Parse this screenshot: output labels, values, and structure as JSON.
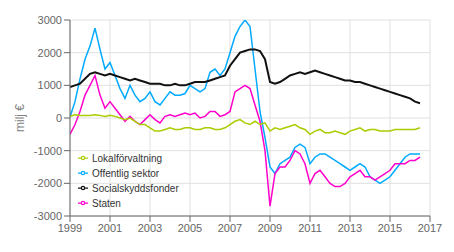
{
  "chart_data": {
    "type": "line",
    "title": "",
    "ylabel": "milj €",
    "x": [
      1999,
      1999.25,
      1999.5,
      1999.75,
      2000,
      2000.25,
      2000.5,
      2000.75,
      2001,
      2001.25,
      2001.5,
      2001.75,
      2002,
      2002.25,
      2002.5,
      2002.75,
      2003,
      2003.25,
      2003.5,
      2003.75,
      2004,
      2004.25,
      2004.5,
      2004.75,
      2005,
      2005.25,
      2005.5,
      2005.75,
      2006,
      2006.25,
      2006.5,
      2006.75,
      2007,
      2007.25,
      2007.5,
      2007.75,
      2008,
      2008.25,
      2008.5,
      2008.75,
      2009,
      2009.25,
      2009.5,
      2009.75,
      2010,
      2010.25,
      2010.5,
      2010.75,
      2011,
      2011.25,
      2011.5,
      2011.75,
      2012,
      2012.25,
      2012.5,
      2012.75,
      2013,
      2013.25,
      2013.5,
      2013.75,
      2014,
      2014.25,
      2014.5,
      2014.75,
      2015,
      2015.25,
      2015.5,
      2015.75,
      2016,
      2016.25,
      2016.5
    ],
    "series": [
      {
        "name": "Offentlig sektor",
        "color": "#00aaff",
        "values": [
          30,
          500,
          1200,
          1800,
          2200,
          2750,
          2100,
          1500,
          1700,
          1300,
          900,
          600,
          1000,
          700,
          500,
          600,
          800,
          500,
          400,
          600,
          800,
          700,
          700,
          750,
          1000,
          900,
          800,
          900,
          1400,
          1500,
          1300,
          1500,
          2000,
          2500,
          2800,
          3000,
          2800,
          1500,
          200,
          -600,
          -1500,
          -1700,
          -1400,
          -1300,
          -1200,
          -900,
          -800,
          -900,
          -1400,
          -1200,
          -1100,
          -1100,
          -1200,
          -1300,
          -1400,
          -1500,
          -1600,
          -1500,
          -1400,
          -1500,
          -1800,
          -1900,
          -2000,
          -1900,
          -1800,
          -1600,
          -1400,
          -1200,
          -1100,
          -1100,
          -1100
        ]
      },
      {
        "name": "Staten",
        "color": "#ff00cc",
        "values": [
          -500,
          -200,
          200,
          700,
          1000,
          1300,
          700,
          300,
          500,
          300,
          100,
          -100,
          50,
          -100,
          -200,
          -50,
          100,
          -50,
          -150,
          50,
          100,
          50,
          100,
          150,
          100,
          150,
          0,
          50,
          200,
          200,
          50,
          100,
          200,
          800,
          900,
          1000,
          900,
          400,
          -100,
          -1000,
          -2700,
          -1700,
          -1500,
          -1500,
          -1300,
          -1000,
          -1100,
          -1400,
          -2000,
          -1700,
          -1600,
          -1800,
          -2000,
          -2100,
          -2100,
          -2000,
          -1800,
          -1700,
          -1600,
          -1800,
          -1800,
          -1900,
          -1800,
          -1700,
          -1600,
          -1400,
          -1400,
          -1400,
          -1300,
          -1300,
          -1200
        ]
      },
      {
        "name": "Lokalförvaltning",
        "color": "#aacc00",
        "values": [
          50,
          100,
          80,
          80,
          80,
          100,
          80,
          50,
          80,
          50,
          0,
          -50,
          0,
          -100,
          -200,
          -200,
          -300,
          -400,
          -400,
          -350,
          -300,
          -350,
          -350,
          -300,
          -300,
          -350,
          -350,
          -300,
          -300,
          -350,
          -350,
          -300,
          -200,
          -100,
          -50,
          -150,
          -200,
          -100,
          -200,
          -150,
          -400,
          -300,
          -350,
          -300,
          -250,
          -200,
          -300,
          -350,
          -500,
          -400,
          -350,
          -450,
          -450,
          -400,
          -450,
          -500,
          -400,
          -350,
          -300,
          -400,
          -350,
          -350,
          -400,
          -400,
          -400,
          -350,
          -350,
          -350,
          -350,
          -350,
          -300
        ]
      },
      {
        "name": "Socialskyddsfonder",
        "color": "#111111",
        "values": [
          950,
          1000,
          1050,
          1200,
          1350,
          1400,
          1350,
          1300,
          1350,
          1300,
          1250,
          1200,
          1150,
          1200,
          1150,
          1100,
          1050,
          1050,
          1050,
          1000,
          1000,
          1050,
          1000,
          1000,
          1050,
          1100,
          1100,
          1100,
          1150,
          1200,
          1250,
          1300,
          1600,
          1800,
          2000,
          2050,
          2100,
          2100,
          2050,
          1800,
          1100,
          1050,
          1100,
          1200,
          1300,
          1350,
          1400,
          1350,
          1400,
          1450,
          1400,
          1350,
          1300,
          1250,
          1200,
          1150,
          1150,
          1100,
          1100,
          1050,
          1000,
          950,
          900,
          850,
          800,
          750,
          700,
          650,
          600,
          500,
          450
        ]
      }
    ],
    "xlim": [
      1999.0,
      2017.0
    ],
    "xticks": [
      1999,
      2001,
      2003,
      2005,
      2007,
      2009,
      2011,
      2013,
      2015,
      2017
    ],
    "ylim": [
      -3000,
      3000
    ],
    "yticks": [
      -3000,
      -2000,
      -1000,
      0,
      1000,
      2000,
      3000
    ],
    "grid": true,
    "legend": "lower left"
  }
}
